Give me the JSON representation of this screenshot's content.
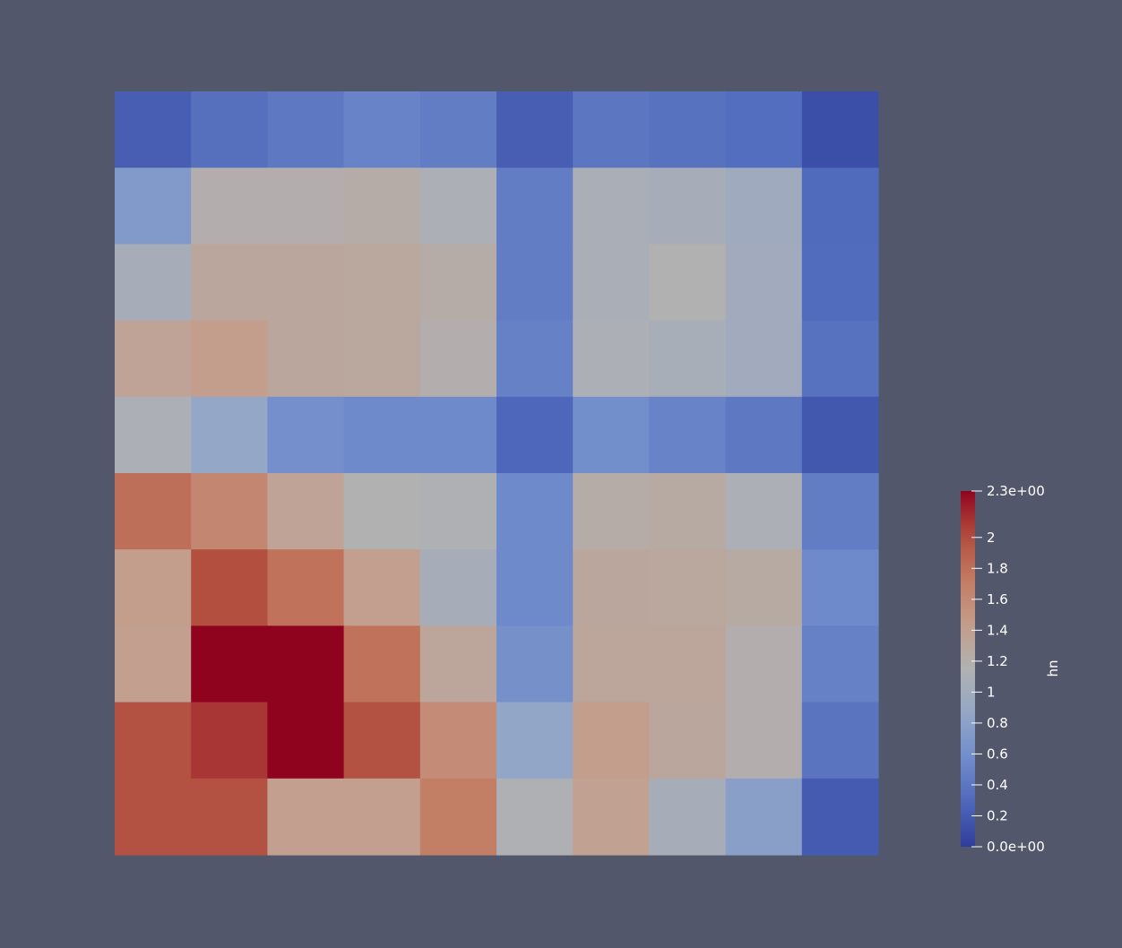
{
  "chart_data": {
    "type": "heatmap",
    "scalar_name": "hn",
    "colormap": "Cool to Warm",
    "range": [
      0.0,
      2.3
    ],
    "rows_top_to_bottom": [
      [
        0.22,
        0.35,
        0.42,
        0.5,
        0.45,
        0.22,
        0.4,
        0.36,
        0.33,
        0.12
      ],
      [
        0.72,
        1.18,
        1.18,
        1.22,
        1.1,
        0.45,
        1.08,
        1.05,
        0.98,
        0.3
      ],
      [
        1.05,
        1.3,
        1.3,
        1.28,
        1.22,
        0.45,
        1.08,
        1.15,
        1.0,
        0.32
      ],
      [
        1.35,
        1.42,
        1.3,
        1.28,
        1.18,
        0.48,
        1.1,
        1.06,
        1.0,
        0.36
      ],
      [
        1.1,
        0.88,
        0.6,
        0.55,
        0.55,
        0.28,
        0.58,
        0.5,
        0.42,
        0.18
      ],
      [
        1.8,
        1.62,
        1.35,
        1.15,
        1.12,
        0.55,
        1.22,
        1.25,
        1.1,
        0.45
      ],
      [
        1.42,
        2.0,
        1.78,
        1.4,
        1.05,
        0.55,
        1.3,
        1.28,
        1.25,
        0.55
      ],
      [
        1.4,
        2.3,
        2.3,
        1.78,
        1.32,
        0.62,
        1.32,
        1.32,
        1.18,
        0.48
      ],
      [
        1.98,
        2.1,
        2.3,
        1.98,
        1.58,
        0.85,
        1.42,
        1.3,
        1.18,
        0.38
      ],
      [
        1.98,
        1.98,
        1.4,
        1.4,
        1.7,
        1.12,
        1.38,
        1.05,
        0.78,
        0.2
      ]
    ],
    "colorbar": {
      "title": "hn",
      "ticks": [
        0.2,
        0.4,
        0.6,
        0.8,
        1,
        1.2,
        1.4,
        1.6,
        1.8,
        2
      ],
      "tick_labels": [
        "0.2",
        "0.4",
        "0.6",
        "0.8",
        "1",
        "1.2",
        "1.4",
        "1.6",
        "1.8",
        "2"
      ],
      "min_label": "0.0e+00",
      "max_label": "2.3e+00"
    }
  }
}
